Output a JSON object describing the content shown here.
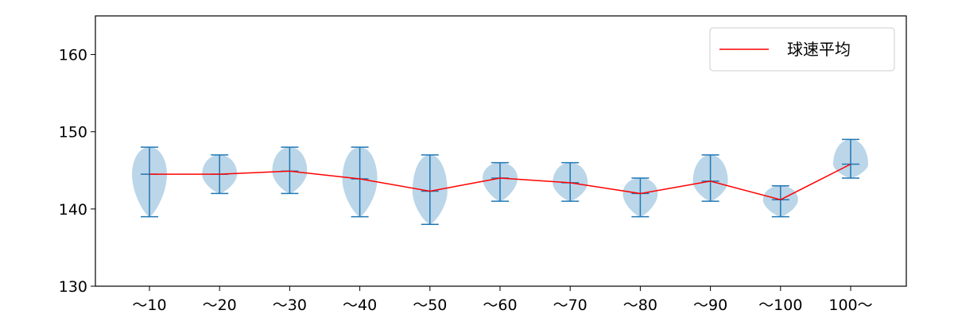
{
  "chart_data": {
    "type": "violin",
    "categories": [
      "～10",
      "～20",
      "～30",
      "～40",
      "～50",
      "～60",
      "～70",
      "～80",
      "～90",
      "～100",
      "100～"
    ],
    "ylim": [
      130,
      165
    ],
    "yticks": [
      130,
      140,
      150,
      160
    ],
    "grid": false,
    "legend_position": "top-right",
    "colors": {
      "violin": "#1f77b4",
      "line": "#ff0000"
    },
    "distributions": [
      {
        "min": 139,
        "max": 148,
        "mean": 144.5
      },
      {
        "min": 142,
        "max": 147,
        "mean": 144.5
      },
      {
        "min": 142,
        "max": 148,
        "mean": 144.9
      },
      {
        "min": 139,
        "max": 148,
        "mean": 143.9
      },
      {
        "min": 138,
        "max": 147,
        "mean": 142.3
      },
      {
        "min": 141,
        "max": 146,
        "mean": 144.0
      },
      {
        "min": 141,
        "max": 146,
        "mean": 143.4
      },
      {
        "min": 139,
        "max": 144,
        "mean": 142.0
      },
      {
        "min": 141,
        "max": 147,
        "mean": 143.6
      },
      {
        "min": 139,
        "max": 143,
        "mean": 141.2
      },
      {
        "min": 144,
        "max": 149,
        "mean": 145.8
      }
    ],
    "series": [
      {
        "name": "球速平均",
        "values": [
          144.5,
          144.5,
          144.9,
          143.9,
          142.3,
          144.0,
          143.4,
          142.0,
          143.6,
          141.2,
          145.8
        ]
      }
    ]
  }
}
